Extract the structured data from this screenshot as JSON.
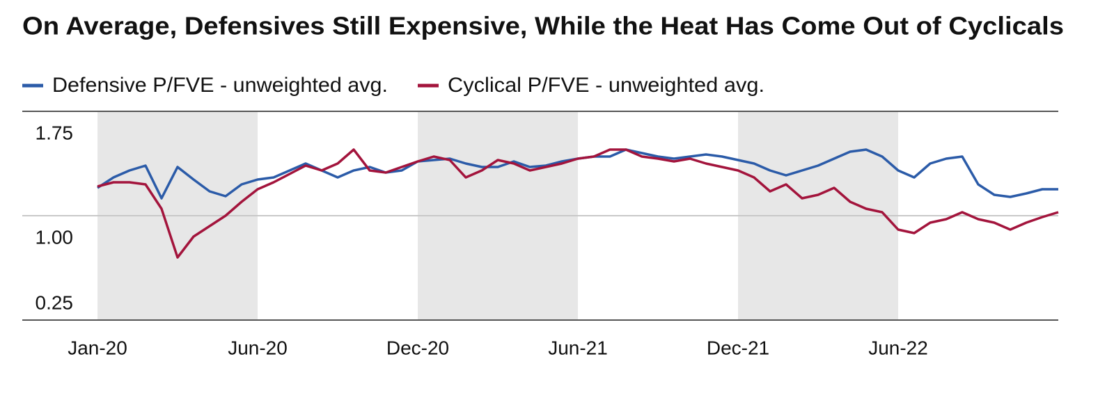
{
  "chart_data": {
    "type": "line",
    "title": "On Average, Defensives Still Expensive, While the Heat Has Come Out of Cyclicals",
    "categories": [
      "Jan-20",
      null,
      null,
      null,
      null,
      null,
      null,
      null,
      null,
      null,
      "Jun-20",
      null,
      null,
      null,
      null,
      null,
      null,
      null,
      null,
      null,
      "Dec-20",
      null,
      null,
      null,
      null,
      null,
      null,
      null,
      null,
      null,
      "Jun-21",
      null,
      null,
      null,
      null,
      null,
      null,
      null,
      null,
      null,
      "Dec-21",
      null,
      null,
      null,
      null,
      null,
      null,
      null,
      null,
      null,
      "Jun-22",
      null,
      null,
      null,
      null,
      null,
      null,
      null,
      null,
      null,
      null
    ],
    "series": [
      {
        "name": "Defensive P/FVE - unweighted avg.",
        "color": "#2b5ba8",
        "values": [
          1.2,
          1.275,
          1.325,
          1.36,
          1.125,
          1.35,
          1.26,
          1.175,
          1.14,
          1.225,
          1.26,
          1.275,
          1.325,
          1.375,
          1.325,
          1.275,
          1.325,
          1.35,
          1.31,
          1.325,
          1.39,
          1.4,
          1.41,
          1.375,
          1.35,
          1.35,
          1.39,
          1.35,
          1.36,
          1.39,
          1.41,
          1.425,
          1.425,
          1.475,
          1.45,
          1.425,
          1.41,
          1.425,
          1.44,
          1.425,
          1.4,
          1.375,
          1.325,
          1.29,
          1.325,
          1.36,
          1.41,
          1.46,
          1.475,
          1.425,
          1.325,
          1.275,
          1.375,
          1.41,
          1.425,
          1.225,
          1.15,
          1.135,
          1.16,
          1.19,
          1.19
        ]
      },
      {
        "name": "Cyclical P/FVE - unweighted avg.",
        "color": "#a3143c",
        "values": [
          1.21,
          1.24,
          1.24,
          1.225,
          1.05,
          0.7,
          0.85,
          0.925,
          1.0,
          1.1,
          1.19,
          1.24,
          1.3,
          1.36,
          1.325,
          1.375,
          1.475,
          1.325,
          1.31,
          1.35,
          1.39,
          1.425,
          1.4,
          1.275,
          1.325,
          1.4,
          1.375,
          1.325,
          1.35,
          1.375,
          1.41,
          1.425,
          1.475,
          1.475,
          1.425,
          1.41,
          1.39,
          1.41,
          1.375,
          1.35,
          1.325,
          1.275,
          1.175,
          1.225,
          1.125,
          1.15,
          1.2,
          1.1,
          1.05,
          1.025,
          0.9,
          0.875,
          0.95,
          0.975,
          1.025,
          0.975,
          0.95,
          0.9,
          0.95,
          0.99,
          1.025
        ]
      }
    ],
    "ylim": [
      0.25,
      1.75
    ],
    "yticks": [
      0.25,
      {
        "value": 1,
        "label": "1.00"
      },
      1.75
    ],
    "grid": true
  }
}
